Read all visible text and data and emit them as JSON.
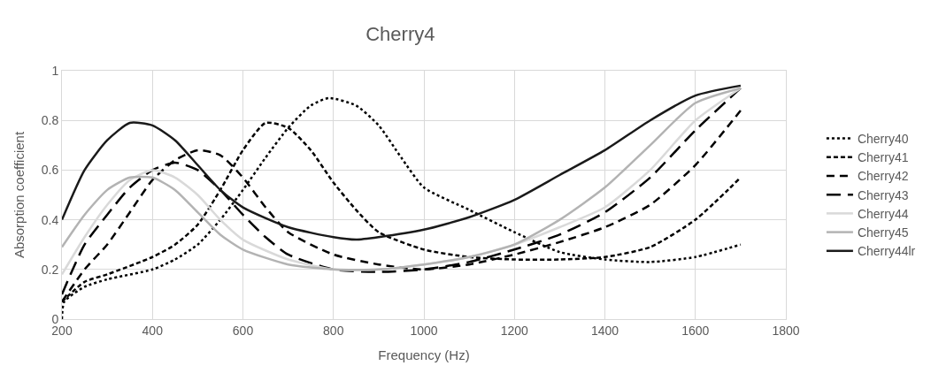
{
  "chart_data": {
    "type": "line",
    "title": "Cherry4",
    "xlabel": "Frequency (Hz)",
    "ylabel": "Absorption coefficient",
    "xlim": [
      200,
      1800
    ],
    "xticks": [
      200,
      400,
      600,
      800,
      1000,
      1200,
      1400,
      1600,
      1800
    ],
    "ylim": [
      0,
      1
    ],
    "yticks": [
      0,
      0.2,
      0.4,
      0.6,
      0.8,
      1
    ],
    "grid": true,
    "legend": "right",
    "marker": "none",
    "series": [
      {
        "name": "Cherry40",
        "color": "#000000",
        "line_style": "dotted",
        "x": [
          200,
          205,
          250,
          300,
          400,
          450,
          500,
          550,
          600,
          650,
          700,
          750,
          790,
          850,
          900,
          950,
          1000,
          1100,
          1200,
          1300,
          1400,
          1500,
          1600,
          1700
        ],
        "values": [
          0,
          0.07,
          0.13,
          0.16,
          0.2,
          0.24,
          0.3,
          0.4,
          0.52,
          0.65,
          0.77,
          0.86,
          0.89,
          0.86,
          0.78,
          0.65,
          0.53,
          0.44,
          0.35,
          0.27,
          0.24,
          0.23,
          0.25,
          0.3
        ]
      },
      {
        "name": "Cherry41",
        "color": "#000000",
        "line_style": "dashed",
        "x": [
          200,
          250,
          300,
          400,
          450,
          500,
          550,
          600,
          650,
          700,
          750,
          800,
          850,
          900,
          1000,
          1100,
          1200,
          1300,
          1400,
          1500,
          1600,
          1700
        ],
        "values": [
          0.07,
          0.15,
          0.18,
          0.25,
          0.3,
          0.38,
          0.52,
          0.68,
          0.79,
          0.77,
          0.68,
          0.55,
          0.44,
          0.35,
          0.28,
          0.25,
          0.24,
          0.24,
          0.25,
          0.29,
          0.4,
          0.57
        ]
      },
      {
        "name": "Cherry42",
        "color": "#000000",
        "line_style": "dashed",
        "x": [
          200,
          250,
          300,
          350,
          400,
          450,
          500,
          550,
          600,
          650,
          700,
          800,
          900,
          1000,
          1100,
          1200,
          1300,
          1400,
          1500,
          1600,
          1700
        ],
        "values": [
          0.07,
          0.2,
          0.3,
          0.43,
          0.56,
          0.64,
          0.68,
          0.66,
          0.57,
          0.45,
          0.35,
          0.26,
          0.22,
          0.2,
          0.22,
          0.26,
          0.31,
          0.37,
          0.46,
          0.62,
          0.84
        ]
      },
      {
        "name": "Cherry43",
        "color": "#000000",
        "line_style": "dashed",
        "x": [
          200,
          250,
          300,
          350,
          400,
          450,
          500,
          550,
          600,
          650,
          700,
          800,
          900,
          1000,
          1100,
          1200,
          1300,
          1400,
          1500,
          1600,
          1700
        ],
        "values": [
          0.1,
          0.3,
          0.42,
          0.53,
          0.6,
          0.63,
          0.6,
          0.52,
          0.42,
          0.33,
          0.26,
          0.2,
          0.19,
          0.2,
          0.23,
          0.28,
          0.34,
          0.43,
          0.57,
          0.76,
          0.93
        ]
      },
      {
        "name": "Cherry44",
        "color": "#d9d9d9",
        "line_style": "solid",
        "x": [
          200,
          250,
          300,
          350,
          400,
          450,
          500,
          550,
          600,
          700,
          800,
          900,
          1000,
          1100,
          1200,
          1300,
          1400,
          1500,
          1600,
          1700
        ],
        "values": [
          0.18,
          0.33,
          0.46,
          0.56,
          0.6,
          0.57,
          0.5,
          0.4,
          0.32,
          0.24,
          0.2,
          0.2,
          0.22,
          0.25,
          0.3,
          0.37,
          0.45,
          0.6,
          0.8,
          0.93
        ]
      },
      {
        "name": "Cherry45",
        "color": "#b3b3b3",
        "line_style": "solid",
        "x": [
          200,
          250,
          300,
          350,
          400,
          450,
          500,
          550,
          600,
          700,
          800,
          900,
          1000,
          1100,
          1200,
          1300,
          1400,
          1500,
          1600,
          1700
        ],
        "values": [
          0.29,
          0.42,
          0.52,
          0.57,
          0.57,
          0.52,
          0.43,
          0.34,
          0.28,
          0.22,
          0.2,
          0.2,
          0.22,
          0.25,
          0.3,
          0.4,
          0.53,
          0.7,
          0.87,
          0.93
        ]
      },
      {
        "name": "Cherry44lr",
        "color": "#1a1a1a",
        "line_style": "solid",
        "x": [
          200,
          250,
          300,
          350,
          400,
          450,
          500,
          550,
          600,
          700,
          800,
          850,
          900,
          1000,
          1100,
          1200,
          1300,
          1400,
          1500,
          1600,
          1700
        ],
        "values": [
          0.4,
          0.6,
          0.72,
          0.79,
          0.78,
          0.72,
          0.62,
          0.52,
          0.45,
          0.37,
          0.33,
          0.32,
          0.33,
          0.36,
          0.41,
          0.48,
          0.58,
          0.68,
          0.8,
          0.9,
          0.94
        ]
      }
    ]
  }
}
